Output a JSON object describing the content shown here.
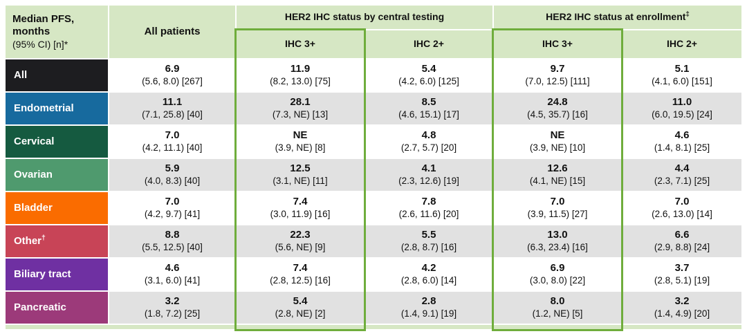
{
  "colors": {
    "header_green": "#d6e7c4",
    "stripe_gray": "#e1e1e1",
    "accent_green": "#6fad3c"
  },
  "table": {
    "corner_title": "Median PFS,\nmonths",
    "corner_sub": "(95% CI) [n]*",
    "all_patients_label": "All patients",
    "group_central_label": "HER2 IHC status by central testing",
    "group_enrollment_label": "HER2 IHC status at enrollment",
    "group_enrollment_sup": "‡",
    "subheaders": [
      "IHC 3+",
      "IHC 2+",
      "IHC 3+",
      "IHC 2+"
    ],
    "column_keys": [
      "all-patients",
      "central-ihc3plus",
      "central-ihc2plus",
      "enrollment-ihc3plus",
      "enrollment-ihc2plus"
    ]
  },
  "rows": [
    {
      "label": "All",
      "sup": "",
      "color": "#1d1d20",
      "cells": [
        {
          "value": "6.9",
          "ci": "(5.6, 8.0) [267]"
        },
        {
          "value": "11.9",
          "ci": "(8.2, 13.0) [75]"
        },
        {
          "value": "5.4",
          "ci": "(4.2, 6.0) [125]"
        },
        {
          "value": "9.7",
          "ci": "(7.0, 12.5) [111]"
        },
        {
          "value": "5.1",
          "ci": "(4.1, 6.0) [151]"
        }
      ]
    },
    {
      "label": "Endometrial",
      "sup": "",
      "color": "#176a9e",
      "cells": [
        {
          "value": "11.1",
          "ci": "(7.1, 25.8) [40]"
        },
        {
          "value": "28.1",
          "ci": "(7.3, NE) [13]"
        },
        {
          "value": "8.5",
          "ci": "(4.6, 15.1) [17]"
        },
        {
          "value": "24.8",
          "ci": "(4.5, 35.7) [16]"
        },
        {
          "value": "11.0",
          "ci": "(6.0, 19.5) [24]"
        }
      ]
    },
    {
      "label": "Cervical",
      "sup": "",
      "color": "#155a40",
      "cells": [
        {
          "value": "7.0",
          "ci": "(4.2, 11.1) [40]"
        },
        {
          "value": "NE",
          "ci": "(3.9, NE) [8]"
        },
        {
          "value": "4.8",
          "ci": "(2.7, 5.7) [20]"
        },
        {
          "value": "NE",
          "ci": "(3.9, NE) [10]"
        },
        {
          "value": "4.6",
          "ci": "(1.4, 8.1) [25]"
        }
      ]
    },
    {
      "label": "Ovarian",
      "sup": "",
      "color": "#4f9a6e",
      "cells": [
        {
          "value": "5.9",
          "ci": "(4.0, 8.3) [40]"
        },
        {
          "value": "12.5",
          "ci": "(3.1, NE) [11]"
        },
        {
          "value": "4.1",
          "ci": "(2.3, 12.6) [19]"
        },
        {
          "value": "12.6",
          "ci": "(4.1, NE) [15]"
        },
        {
          "value": "4.4",
          "ci": "(2.3, 7.1) [25]"
        }
      ]
    },
    {
      "label": "Bladder",
      "sup": "",
      "color": "#fa6c00",
      "cells": [
        {
          "value": "7.0",
          "ci": "(4.2, 9.7) [41]"
        },
        {
          "value": "7.4",
          "ci": "(3.0, 11.9) [16]"
        },
        {
          "value": "7.8",
          "ci": "(2.6, 11.6) [20]"
        },
        {
          "value": "7.0",
          "ci": "(3.9, 11.5) [27]"
        },
        {
          "value": "7.0",
          "ci": "(2.6, 13.0) [14]"
        }
      ]
    },
    {
      "label": "Other",
      "sup": "†",
      "color": "#c84457",
      "cells": [
        {
          "value": "8.8",
          "ci": "(5.5, 12.5) [40]"
        },
        {
          "value": "22.3",
          "ci": "(5.6, NE) [9]"
        },
        {
          "value": "5.5",
          "ci": "(2.8, 8.7) [16]"
        },
        {
          "value": "13.0",
          "ci": "(6.3, 23.4) [16]"
        },
        {
          "value": "6.6",
          "ci": "(2.9, 8.8) [24]"
        }
      ]
    },
    {
      "label": "Biliary tract",
      "sup": "",
      "color": "#6f30a2",
      "cells": [
        {
          "value": "4.6",
          "ci": "(3.1, 6.0) [41]"
        },
        {
          "value": "7.4",
          "ci": "(2.8, 12.5) [16]"
        },
        {
          "value": "4.2",
          "ci": "(2.8, 6.0) [14]"
        },
        {
          "value": "6.9",
          "ci": "(3.0, 8.0) [22]"
        },
        {
          "value": "3.7",
          "ci": "(2.8, 5.1) [19]"
        }
      ]
    },
    {
      "label": "Pancreatic",
      "sup": "",
      "color": "#9c3a7a",
      "cells": [
        {
          "value": "3.2",
          "ci": "(1.8, 7.2) [25]"
        },
        {
          "value": "5.4",
          "ci": "(2.8, NE) [2]"
        },
        {
          "value": "2.8",
          "ci": "(1.4, 9.1) [19]"
        },
        {
          "value": "8.0",
          "ci": "(1.2, NE) [5]"
        },
        {
          "value": "3.2",
          "ci": "(1.4, 4.9) [20]"
        }
      ]
    }
  ]
}
